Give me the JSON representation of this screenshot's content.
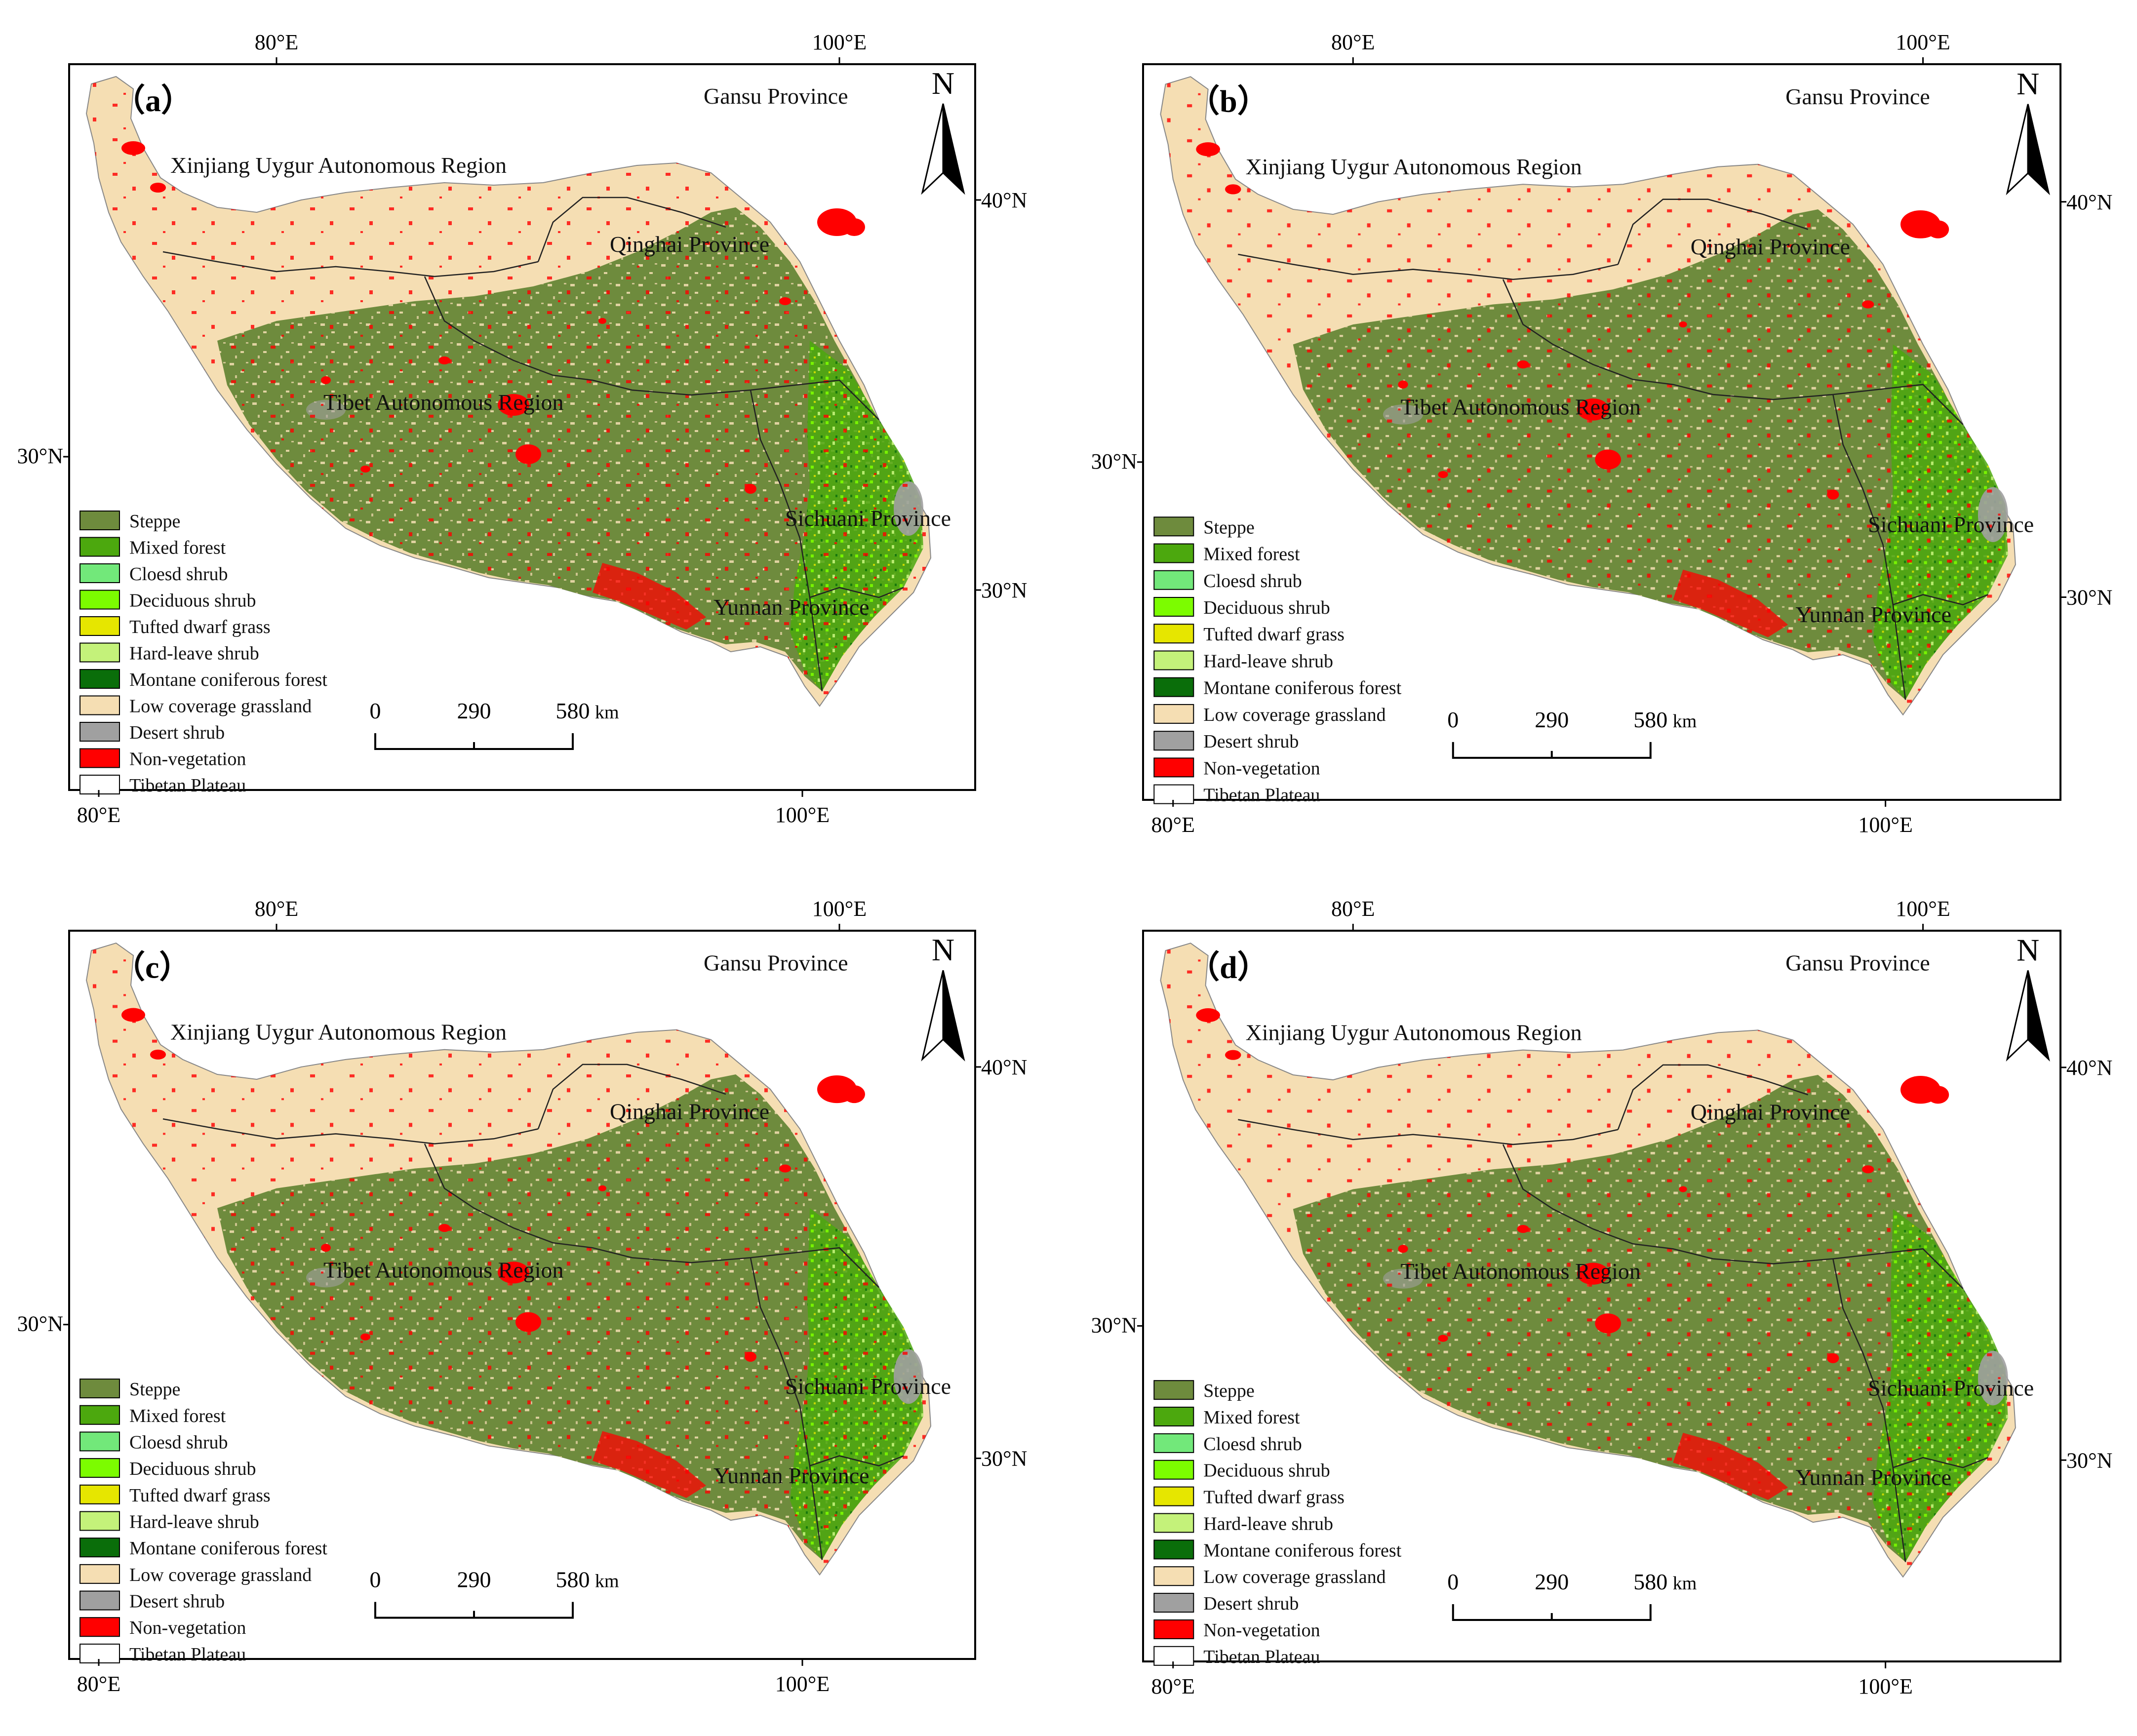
{
  "colors": {
    "steppe": "#6E8B3D",
    "mixed_forest": "#4CA80E",
    "cloesd_shrub": "#72E87A",
    "deciduous_shrub": "#7CFC00",
    "tufted_dwarf_grass": "#E6E600",
    "hard_leave_shrub": "#C4F27A",
    "montane_coniferous_forest": "#0A6E0A",
    "low_coverage_grassland": "#F5DEB3",
    "desert_shrub": "#A0A0A0",
    "non_vegetation": "#FF0000",
    "tibetan_plateau": "#FFFFFF",
    "border": "#000000"
  },
  "panels": [
    {
      "label": "（a）",
      "axis": {
        "top_left": "80°E",
        "top_right": "100°E",
        "bottom_left": "80°E",
        "bottom_right": "100°E",
        "left": "30°N",
        "right_top": "40°N",
        "right_bottom": "30°N"
      },
      "north": "N",
      "regions": [
        "Gansu Province",
        "Xinjiang Uygur Autonomous Region",
        "Qinghai Province",
        "Tibet Autonomous Region",
        "Sichuani Province",
        "Yunnan Province"
      ],
      "legend": [
        "Steppe",
        "Mixed forest",
        "Cloesd shrub",
        "Deciduous shrub",
        "Tufted dwarf grass",
        "Hard-leave shrub",
        "Montane coniferous forest",
        "Low coverage grassland",
        "Desert shrub",
        "Non-vegetation",
        "Tibetan Plateau"
      ],
      "scale": {
        "ticks": [
          "0",
          "290",
          "580"
        ],
        "unit": "km"
      }
    },
    {
      "label": "（b）",
      "axis": {
        "top_left": "80°E",
        "top_right": "100°E",
        "bottom_left": "80°E",
        "bottom_right": "100°E",
        "left": "30°N",
        "right_top": "40°N",
        "right_bottom": "30°N"
      },
      "north": "N",
      "regions": [
        "Gansu Province",
        "Xinjiang Uygur Autonomous Region",
        "Qinghai Province",
        "Tibet Autonomous Region",
        "Sichuani Province",
        "Yunnan Province"
      ],
      "legend": [
        "Steppe",
        "Mixed forest",
        "Cloesd shrub",
        "Deciduous shrub",
        "Tufted dwarf grass",
        "Hard-leave shrub",
        "Montane coniferous forest",
        "Low coverage grassland",
        "Desert shrub",
        "Non-vegetation",
        "Tibetan Plateau"
      ],
      "scale": {
        "ticks": [
          "0",
          "290",
          "580"
        ],
        "unit": "km"
      }
    },
    {
      "label": "（c）",
      "axis": {
        "top_left": "80°E",
        "top_right": "100°E",
        "bottom_left": "80°E",
        "bottom_right": "100°E",
        "left": "30°N",
        "right_top": "40°N",
        "right_bottom": "30°N"
      },
      "north": "N",
      "regions": [
        "Gansu Province",
        "Xinjiang Uygur Autonomous Region",
        "Qinghai Province",
        "Tibet Autonomous Region",
        "Sichuani Province",
        "Yunnan Province"
      ],
      "legend": [
        "Steppe",
        "Mixed forest",
        "Cloesd shrub",
        "Deciduous shrub",
        "Tufted dwarf grass",
        "Hard-leave shrub",
        "Montane coniferous forest",
        "Low coverage grassland",
        "Desert shrub",
        "Non-vegetation",
        "Tibetan Plateau"
      ],
      "scale": {
        "ticks": [
          "0",
          "290",
          "580"
        ],
        "unit": "km"
      }
    },
    {
      "label": "（d）",
      "axis": {
        "top_left": "80°E",
        "top_right": "100°E",
        "bottom_left": "80°E",
        "bottom_right": "100°E",
        "left": "30°N",
        "right_top": "40°N",
        "right_bottom": "30°N"
      },
      "north": "N",
      "regions": [
        "Gansu Province",
        "Xinjiang Uygur Autonomous Region",
        "Qinghai Province",
        "Tibet Autonomous Region",
        "Sichuani Province",
        "Yunnan Province"
      ],
      "legend": [
        "Steppe",
        "Mixed forest",
        "Cloesd shrub",
        "Deciduous shrub",
        "Tufted dwarf grass",
        "Hard-leave shrub",
        "Montane coniferous forest",
        "Low coverage grassland",
        "Desert shrub",
        "Non-vegetation",
        "Tibetan Plateau"
      ],
      "scale": {
        "ticks": [
          "0",
          "290",
          "580"
        ],
        "unit": "km"
      }
    }
  ]
}
